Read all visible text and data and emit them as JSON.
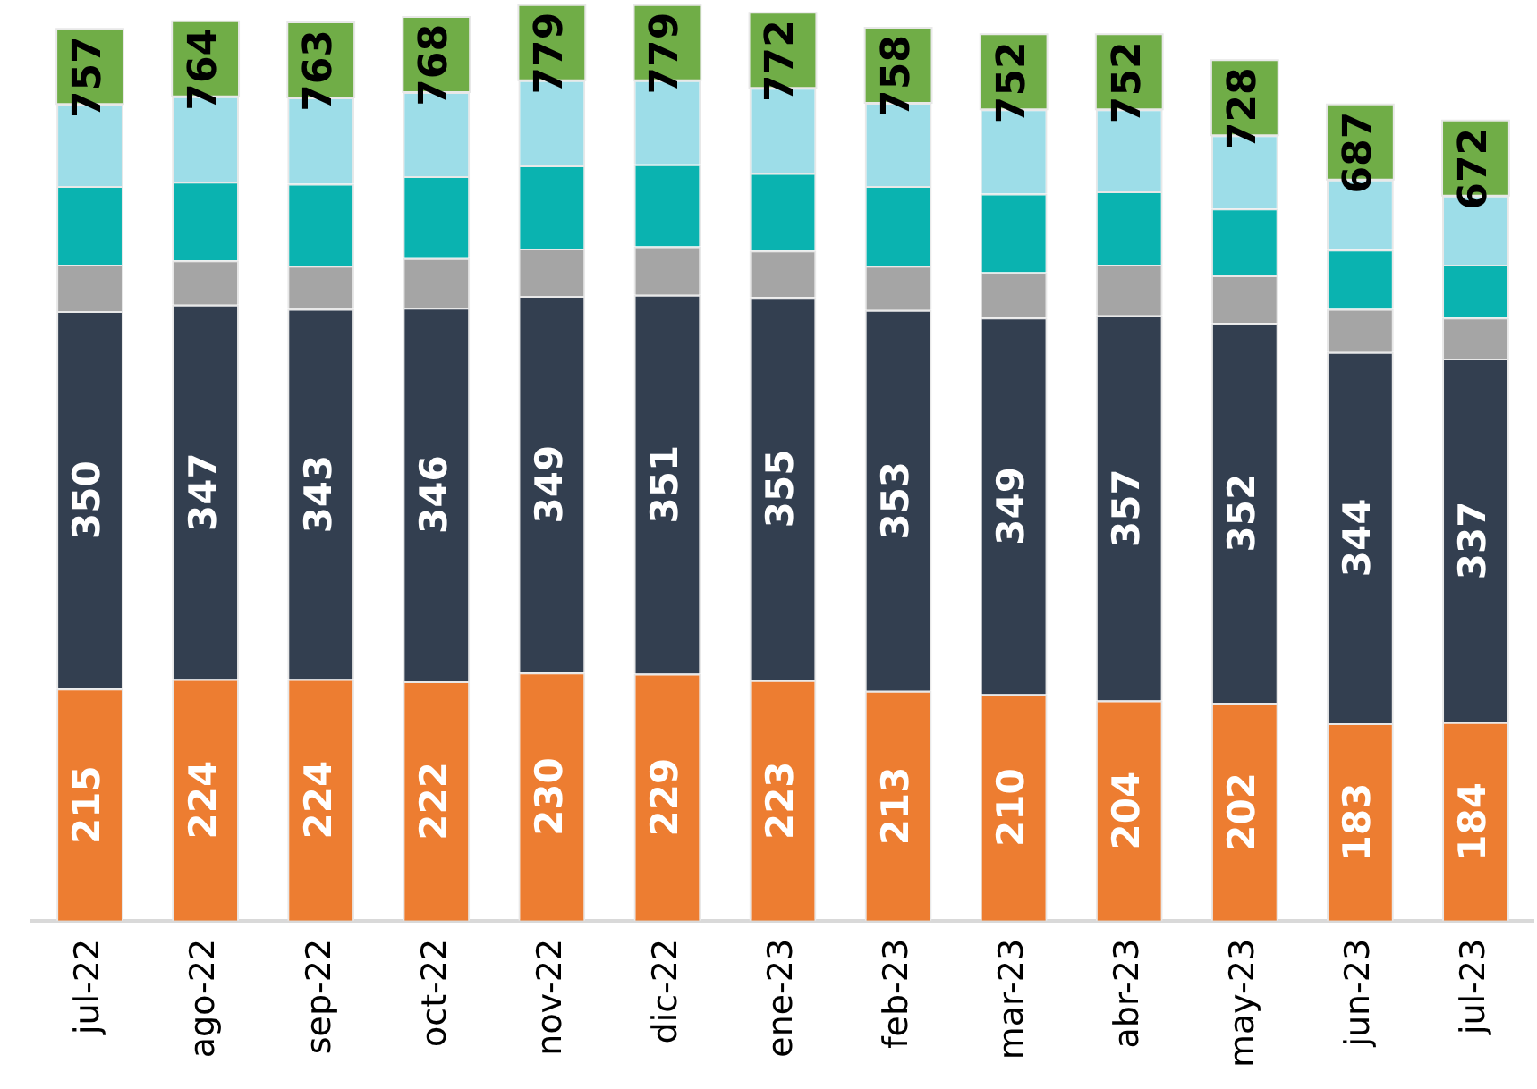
{
  "chart_data": {
    "type": "bar",
    "stacked": true,
    "categories": [
      "jul-22",
      "ago-22",
      "sep-22",
      "oct-22",
      "nov-22",
      "dic-22",
      "ene-23",
      "feb-23",
      "mar-23",
      "abr-23",
      "may-23",
      "jun-23",
      "jul-23"
    ],
    "series": [
      {
        "color": "#ed7d31",
        "values": [
          215,
          224,
          224,
          222,
          230,
          229,
          223,
          213,
          210,
          204,
          202,
          183,
          184
        ],
        "value_labels": [
          "215",
          "224",
          "224",
          "222",
          "230",
          "229",
          "223",
          "213",
          "210",
          "204",
          "202",
          "183",
          "184"
        ]
      },
      {
        "color": "#333f50",
        "values": [
          350,
          347,
          343,
          346,
          349,
          351,
          355,
          353,
          349,
          357,
          352,
          344,
          337
        ],
        "value_labels": [
          "350",
          "347",
          "343",
          "346",
          "349",
          "351",
          "355",
          "353",
          "349",
          "357",
          "352",
          "344",
          "337"
        ]
      },
      {
        "color": "#a5a5a5",
        "values": [
          43,
          41,
          40,
          46,
          44,
          45,
          43,
          41,
          42,
          47,
          44,
          40,
          38
        ]
      },
      {
        "color": "#0ab3b0",
        "values": [
          73,
          73,
          76,
          76,
          77,
          76,
          72,
          74,
          73,
          68,
          62,
          55,
          49
        ]
      },
      {
        "color": "#9ddde8",
        "values": [
          76,
          79,
          80,
          78,
          79,
          78,
          79,
          77,
          78,
          76,
          68,
          65,
          64
        ]
      }
    ],
    "totals": [
      "757",
      "764",
      "763",
      "768",
      "779",
      "779",
      "772",
      "758",
      "752",
      "752",
      "728",
      "687",
      "672"
    ],
    "ylim": [
      0,
      850
    ],
    "tick_labels": "x",
    "grid": false,
    "legend": false
  }
}
